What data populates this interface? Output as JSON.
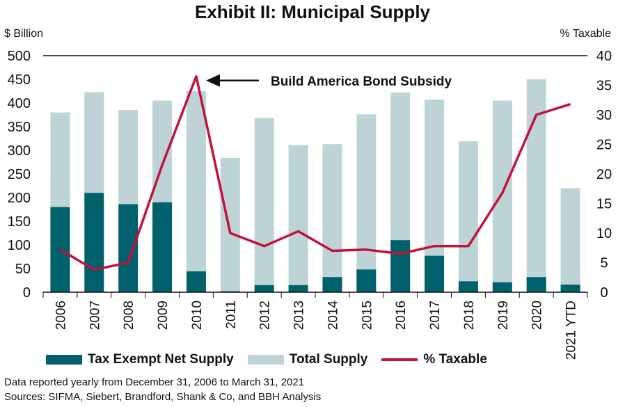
{
  "title": "Exhibit II: Municipal Supply",
  "left_axis_label": "$ Billion",
  "right_axis_label": "% Taxable",
  "annotation": "Build America Bond Subsidy",
  "legend": {
    "tax_exempt": "Tax Exempt Net Supply",
    "total": "Total Supply",
    "taxable": "% Taxable"
  },
  "footnotes": [
    "Data reported yearly from December 31, 2006 to March 31, 2021",
    "Sources: SIFMA, Siebert, Brandford, Shank & Co, and BBH Analysis"
  ],
  "colors": {
    "tax_exempt": "#00606b",
    "total": "#bdd3d6",
    "taxable": "#c2123a"
  },
  "chart_data": {
    "type": "bar",
    "categories": [
      "2006",
      "2007",
      "2008",
      "2009",
      "2010",
      "2011",
      "2012",
      "2013",
      "2014",
      "2015",
      "2016",
      "2017",
      "2018",
      "2019",
      "2020",
      "2021 YTD"
    ],
    "series": [
      {
        "name": "Total Supply",
        "type": "bar",
        "axis": "left",
        "values": [
          380,
          423,
          385,
          405,
          425,
          284,
          368,
          311,
          313,
          376,
          422,
          407,
          319,
          405,
          450,
          220
        ]
      },
      {
        "name": "Tax Exempt Net Supply",
        "type": "bar",
        "axis": "left",
        "values": [
          180,
          210,
          186,
          190,
          44,
          2,
          15,
          15,
          32,
          48,
          110,
          77,
          23,
          21,
          32,
          16
        ]
      },
      {
        "name": "% Taxable",
        "type": "line",
        "axis": "right",
        "values": [
          7.2,
          3.8,
          5.0,
          21.5,
          36.5,
          10.0,
          7.8,
          10.3,
          7.0,
          7.2,
          6.5,
          7.8,
          7.8,
          16.8,
          30.0,
          31.8
        ]
      }
    ],
    "ylim_left": [
      0,
      500
    ],
    "yticks_left": [
      0,
      50,
      100,
      150,
      200,
      250,
      300,
      350,
      400,
      450,
      500
    ],
    "ylim_right": [
      0,
      40
    ],
    "yticks_right": [
      0,
      5,
      10,
      15,
      20,
      25,
      30,
      35,
      40
    ],
    "grid": false,
    "legend_position": "bottom"
  }
}
